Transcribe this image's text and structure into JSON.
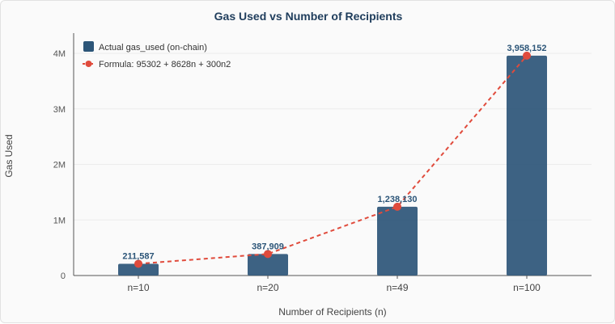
{
  "chart_data": {
    "type": "bar",
    "title": "Gas Used vs Number of Recipients",
    "xlabel": "Number of Recipients (n)",
    "ylabel": "Gas Used",
    "categories": [
      "n=10",
      "n=20",
      "n=49",
      "n=100"
    ],
    "ylim": [
      0,
      4000000
    ],
    "yticks": [
      {
        "value": 0,
        "label": "0"
      },
      {
        "value": 1000000,
        "label": "1M"
      },
      {
        "value": 2000000,
        "label": "2M"
      },
      {
        "value": 3000000,
        "label": "3M"
      },
      {
        "value": 4000000,
        "label": "4M"
      }
    ],
    "grid": true,
    "legend_position": "top-left",
    "series": [
      {
        "name": "Actual gas_used (on-chain)",
        "type": "bar",
        "color": "#2c5578",
        "values": [
          211587,
          387909,
          1238130,
          3958152
        ],
        "labels": [
          "211,587",
          "387,909",
          "1,238,130",
          "3,958,152"
        ]
      },
      {
        "name": "Formula: 95302 + 8628n + 300n2",
        "type": "line",
        "style": "dashed",
        "color": "#e04b3c",
        "values": [
          211587,
          387909,
          1238130,
          3958152
        ]
      }
    ]
  }
}
